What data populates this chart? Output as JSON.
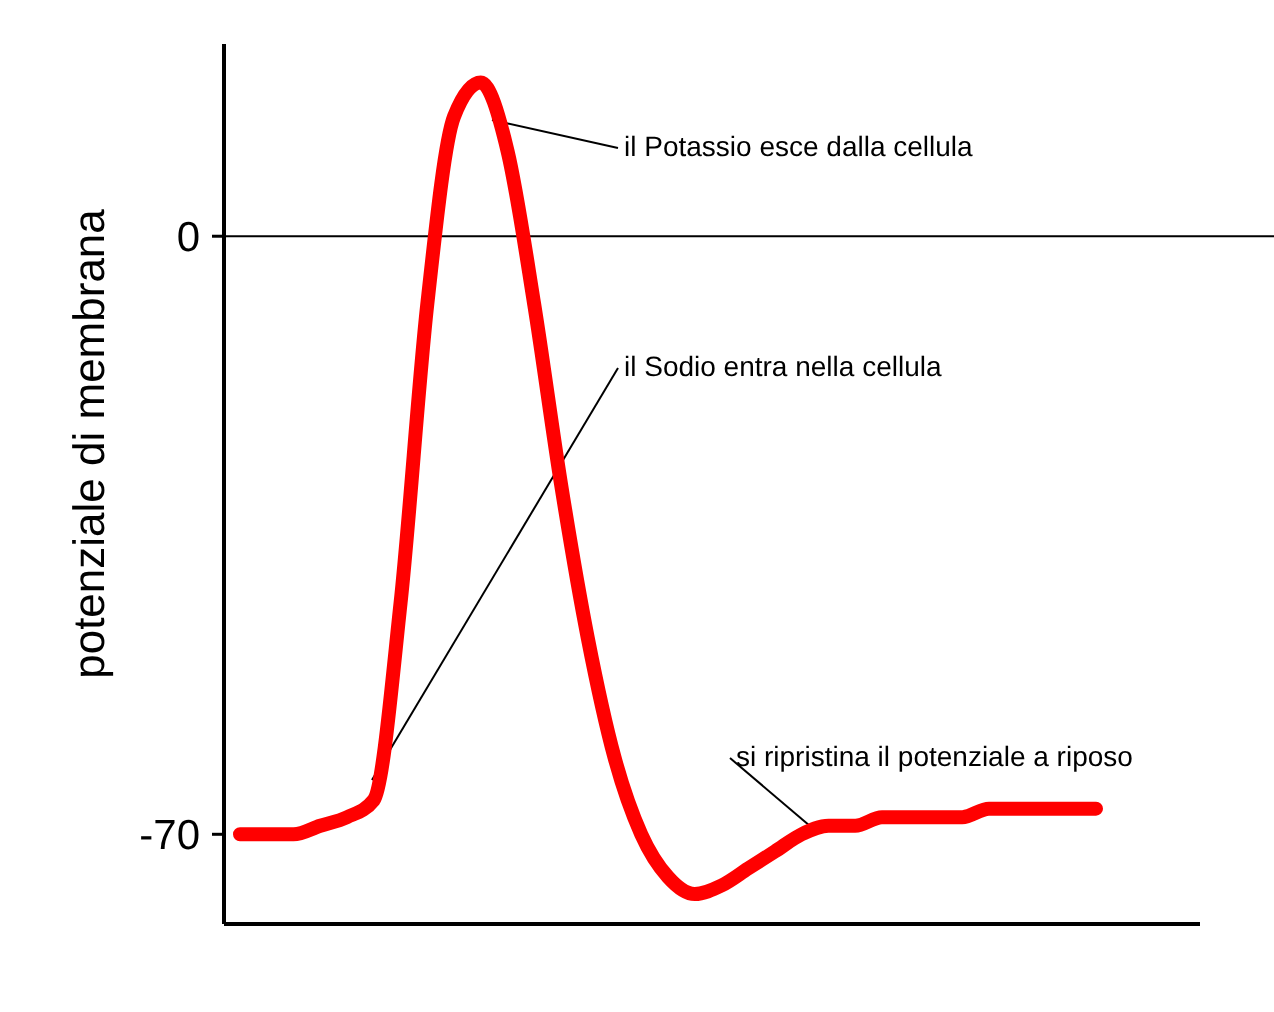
{
  "chart_data": {
    "type": "line",
    "ylabel": "potenziale di membrana",
    "categories": [
      null,
      null,
      null,
      null,
      null,
      null,
      null,
      null,
      null,
      null,
      null,
      null,
      null,
      null,
      null,
      null,
      null,
      null,
      null,
      null,
      null,
      null,
      null,
      null,
      null,
      null,
      null,
      null,
      null,
      null,
      null,
      null,
      null
    ],
    "series": [
      {
        "color": "#ff0000",
        "values": [
          -70,
          -70,
          -70,
          -69,
          -68,
          -66,
          -43,
          -8,
          14,
          18,
          10,
          -8,
          -29,
          -47,
          -61,
          -70,
          -75,
          -77,
          -76,
          -74,
          -72,
          -70,
          -69,
          -69,
          -68,
          -68,
          -68,
          -68,
          -67,
          -67,
          -67,
          -67,
          -67
        ]
      }
    ],
    "ylim": [
      -80.5,
      22.5
    ],
    "yticks": [
      0,
      -70
    ],
    "ref_lines": [
      {
        "axis": "y",
        "value": 0,
        "color": "#000000"
      }
    ],
    "annotations": [
      "il Potassio esce dalla cellula",
      "il Sodio entra nella cellula",
      "si ripristina il potenziale a riposo"
    ],
    "grid": false,
    "marker": "none",
    "line_style": "solid"
  }
}
